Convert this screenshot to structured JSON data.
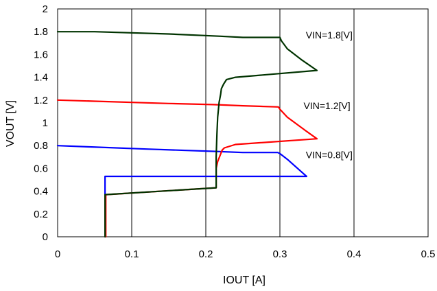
{
  "chart_data": {
    "type": "line",
    "xlabel": "IOUT [A]",
    "ylabel": "VOUT [V]",
    "xlim": [
      0,
      0.5
    ],
    "ylim": [
      0,
      2
    ],
    "x_ticks": [
      "0",
      "0.1",
      "0.2",
      "0.3",
      "0.4",
      "0.5"
    ],
    "y_ticks": [
      "0",
      "0.2",
      "0.4",
      "0.6",
      "0.8",
      "1",
      "1.2",
      "1.4",
      "1.6",
      "1.8",
      "2"
    ],
    "grid": "vertical",
    "legend": "none",
    "series": [
      {
        "color": "#0000ff",
        "points": [
          [
            0.0,
            0.8
          ],
          [
            0.04,
            0.79
          ],
          [
            0.12,
            0.77
          ],
          [
            0.21,
            0.75
          ],
          [
            0.25,
            0.74
          ],
          [
            0.297,
            0.74
          ],
          [
            0.3,
            0.73
          ],
          [
            0.31,
            0.68
          ],
          [
            0.336,
            0.53
          ],
          [
            0.064,
            0.53
          ],
          [
            0.064,
            0.45
          ],
          [
            0.064,
            0.3
          ],
          [
            0.064,
            0.15
          ],
          [
            0.064,
            0.0
          ]
        ]
      },
      {
        "color": "#ff0000",
        "points": [
          [
            0.0,
            1.2
          ],
          [
            0.05,
            1.19
          ],
          [
            0.15,
            1.17
          ],
          [
            0.21,
            1.16
          ],
          [
            0.25,
            1.15
          ],
          [
            0.298,
            1.14
          ],
          [
            0.3,
            1.12
          ],
          [
            0.31,
            1.05
          ],
          [
            0.335,
            0.93
          ],
          [
            0.35,
            0.86
          ],
          [
            0.24,
            0.81
          ],
          [
            0.225,
            0.78
          ],
          [
            0.222,
            0.76
          ],
          [
            0.216,
            0.66
          ],
          [
            0.214,
            0.6
          ],
          [
            0.214,
            0.43
          ],
          [
            0.065,
            0.37
          ],
          [
            0.065,
            0.25
          ],
          [
            0.065,
            0.0
          ]
        ]
      },
      {
        "color": "#003300",
        "points": [
          [
            0.0,
            1.8
          ],
          [
            0.05,
            1.8
          ],
          [
            0.15,
            1.78
          ],
          [
            0.22,
            1.76
          ],
          [
            0.25,
            1.75
          ],
          [
            0.3,
            1.75
          ],
          [
            0.302,
            1.72
          ],
          [
            0.31,
            1.65
          ],
          [
            0.33,
            1.55
          ],
          [
            0.35,
            1.46
          ],
          [
            0.24,
            1.4
          ],
          [
            0.228,
            1.38
          ],
          [
            0.224,
            1.34
          ],
          [
            0.221,
            1.3
          ],
          [
            0.22,
            1.25
          ],
          [
            0.218,
            1.18
          ],
          [
            0.216,
            1.05
          ],
          [
            0.215,
            0.9
          ],
          [
            0.214,
            0.7
          ],
          [
            0.214,
            0.43
          ],
          [
            0.064,
            0.37
          ],
          [
            0.064,
            0.2
          ],
          [
            0.064,
            0.0
          ]
        ]
      }
    ],
    "annotations": [
      {
        "text": "VIN=1.8[V]",
        "x": 0.335,
        "y": 1.77
      },
      {
        "text": "VIN=1.2[V]",
        "x": 0.332,
        "y": 1.15
      },
      {
        "text": "VIN=0.8[V]",
        "x": 0.335,
        "y": 0.72
      }
    ]
  }
}
